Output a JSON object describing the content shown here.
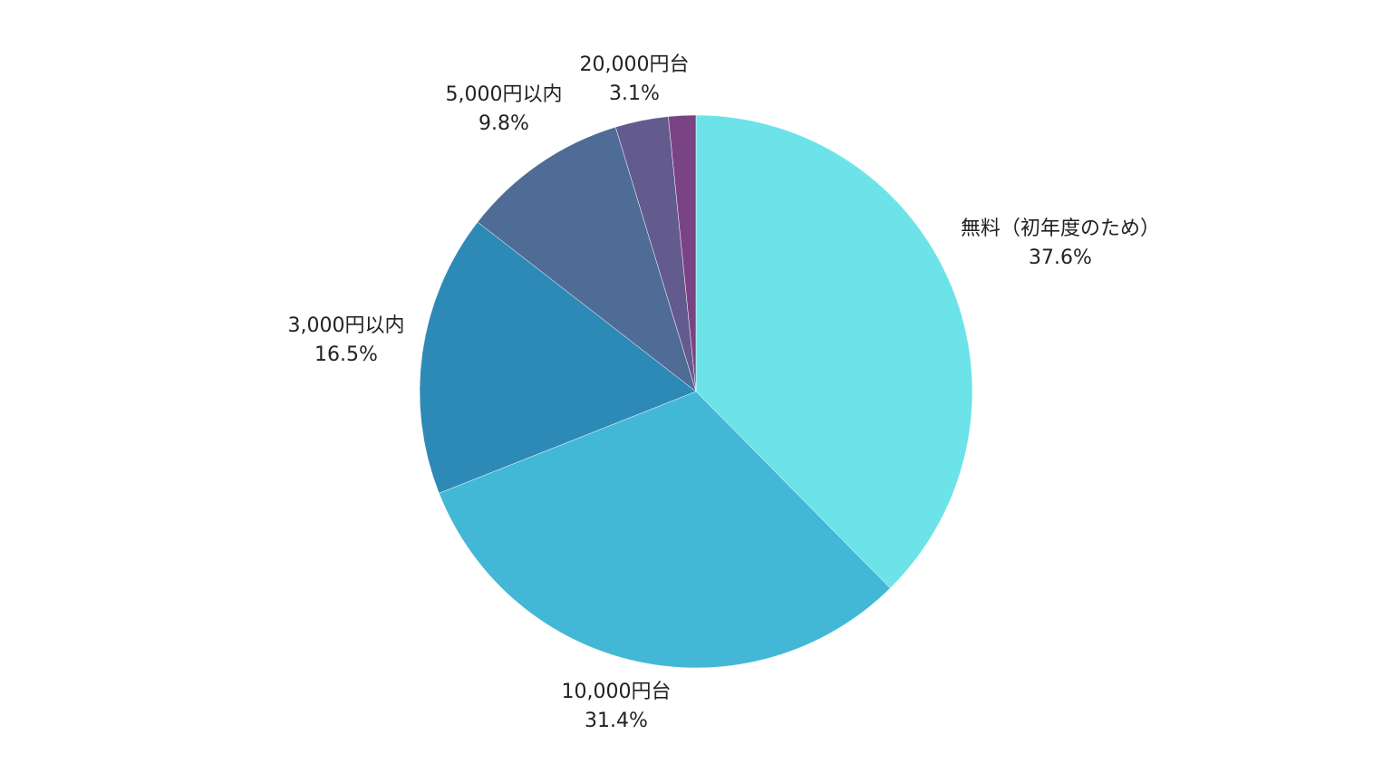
{
  "chart_data": {
    "type": "pie",
    "title": "",
    "legend": "none",
    "start_angle": "12 o'clock",
    "direction": "clockwise",
    "slices": [
      {
        "label": "無料（初年度のため）",
        "value": 37.6,
        "value_label": "37.6%",
        "color": "#6ce3e8"
      },
      {
        "label": "10,000円台",
        "value": 31.4,
        "value_label": "31.4%",
        "color": "#43b7d6"
      },
      {
        "label": "3,000円以内",
        "value": 16.5,
        "value_label": "16.5%",
        "color": "#2d8ab7"
      },
      {
        "label": "5,000円以内",
        "value": 9.8,
        "value_label": "9.8%",
        "color": "#4e6c96"
      },
      {
        "label": "20,000円台",
        "value": 3.1,
        "value_label": "3.1%",
        "color": "#635a8e"
      },
      {
        "label": "",
        "value": 1.6,
        "value_label": "",
        "color": "#7a4384"
      }
    ]
  }
}
